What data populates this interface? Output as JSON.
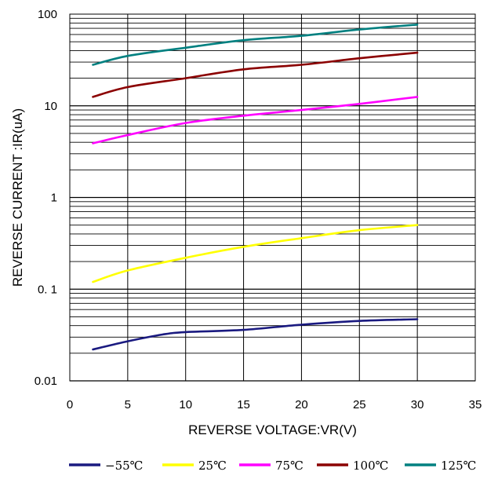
{
  "chart_data": {
    "type": "line",
    "xlabel": "REVERSE VOLTAGE:VR(V)",
    "ylabel": "REVERSE CURRENT :IR(uA)",
    "xlim": [
      0,
      35
    ],
    "ylim": [
      0.01,
      100
    ],
    "yscale": "log",
    "grid": true,
    "x_ticks": [
      "0",
      "5",
      "10",
      "15",
      "20",
      "25",
      "30",
      "35"
    ],
    "y_ticks": [
      "0.01",
      "0. 1",
      "1",
      "10",
      "100"
    ],
    "legend_position": "bottom",
    "series": [
      {
        "name": "−55℃",
        "color": "#1a1a80",
        "x": [
          2,
          5,
          8,
          10,
          15,
          20,
          25,
          30
        ],
        "values": [
          0.022,
          0.027,
          0.032,
          0.034,
          0.036,
          0.041,
          0.045,
          0.047
        ]
      },
      {
        "name": "25℃",
        "color": "#ffff00",
        "x": [
          2,
          5,
          10,
          15,
          20,
          25,
          30
        ],
        "values": [
          0.12,
          0.16,
          0.22,
          0.29,
          0.36,
          0.44,
          0.5
        ]
      },
      {
        "name": "75℃",
        "color": "#ff00ff",
        "x": [
          2,
          5,
          10,
          15,
          20,
          25,
          30
        ],
        "values": [
          3.9,
          4.8,
          6.5,
          7.8,
          9.0,
          10.5,
          12.5
        ]
      },
      {
        "name": "100℃",
        "color": "#8b0000",
        "x": [
          2,
          5,
          10,
          15,
          20,
          25,
          30
        ],
        "values": [
          12.5,
          16,
          20,
          25,
          28,
          33,
          38
        ]
      },
      {
        "name": "125℃",
        "color": "#008080",
        "x": [
          2,
          5,
          10,
          15,
          20,
          25,
          30
        ],
        "values": [
          28,
          35,
          43,
          52,
          58,
          68,
          77
        ]
      }
    ]
  }
}
